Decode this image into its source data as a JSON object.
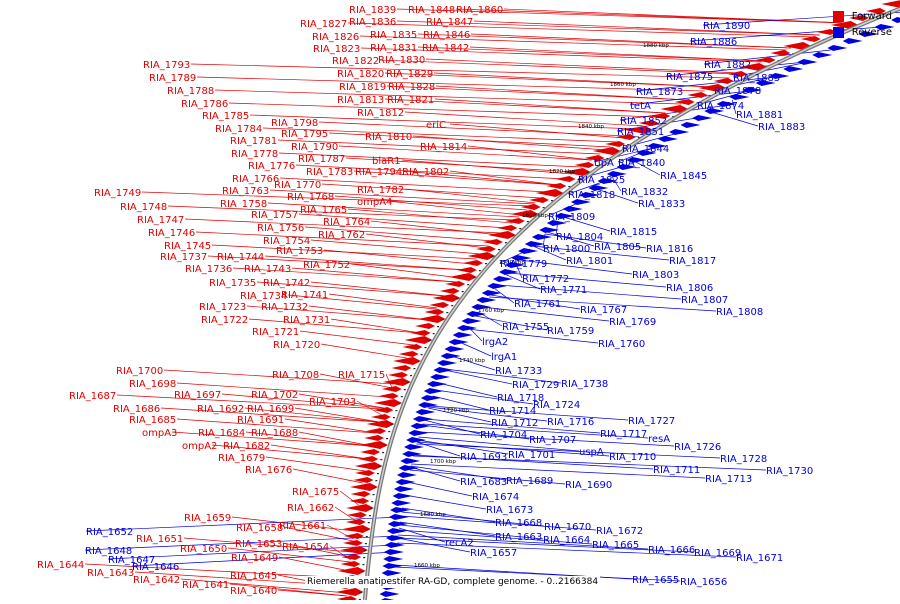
{
  "legend": {
    "forward_label": "Forward",
    "reverse_label": "Reverse",
    "forward_color": "#e00000",
    "reverse_color": "#0000e0"
  },
  "caption": "Riemerella anatipestifer RA-GD, complete genome. - 0..2166384",
  "scale_ticks": [
    "1880 kbp",
    "1860 kbp",
    "1840 kbp",
    "1820 kbp",
    "1800 kbp",
    "1780 kbp",
    "1760 kbp",
    "1740 kbp",
    "1720 kbp",
    "1700 kbp",
    "1680 kbp",
    "1660 kbp"
  ],
  "forward_labels": [
    "RIA_1839",
    "RIA_1848",
    "RIA_1860",
    "RIA_1827",
    "RIA_1836",
    "RIA_1847",
    "RIA_1826",
    "RIA_1835",
    "RIA_1846",
    "RIA_1823",
    "RIA_1831",
    "RIA_1842",
    "RIA_1822",
    "RIA_1830",
    "RIA_1820",
    "RIA_1829",
    "RIA_1819",
    "RIA_1828",
    "RIA_1813",
    "RIA_1821",
    "RIA_1812",
    "eriC",
    "RIA_1810",
    "RIA_1814",
    "RIA_1793",
    "RIA_1789",
    "RIA_1788",
    "RIA_1786",
    "RIA_1785",
    "RIA_1798",
    "RIA_1784",
    "RIA_1795",
    "RIA_1781",
    "RIA_1790",
    "RIA_1778",
    "RIA_1787",
    "blaR1",
    "RIA_1776",
    "RIA_1783",
    "RIA_1794",
    "RIA_1802",
    "RIA_1766",
    "RIA_1770",
    "RIA_1782",
    "RIA_1763",
    "RIA_1768",
    "ompA4",
    "RIA_1758",
    "RIA_1765",
    "RIA_1757",
    "RIA_1764",
    "RIA_1756",
    "RIA_1762",
    "RIA_1749",
    "RIA_1748",
    "RIA_1747",
    "RIA_1754",
    "RIA_1746",
    "RIA_1753",
    "RIA_1745",
    "RIA_1737",
    "RIA_1744",
    "RIA_1752",
    "RIA_1736",
    "RIA_1743",
    "RIA_1735",
    "RIA_1742",
    "RIA_1734",
    "RIA_1741",
    "RIA_1723",
    "RIA_1732",
    "RIA_1722",
    "RIA_1731",
    "RIA_1721",
    "RIA_1720",
    "RIA_1708",
    "RIA_1715",
    "RIA_1700",
    "RIA_1698",
    "RIA_1697",
    "RIA_1702",
    "RIA_1687",
    "RIA_1703",
    "RIA_1686",
    "RIA_1692",
    "RIA_1699",
    "RIA_1685",
    "RIA_1691",
    "ompA3",
    "RIA_1684",
    "RIA_1688",
    "ompA2",
    "RIA_1682",
    "RIA_1679",
    "RIA_1676",
    "RIA_1675",
    "RIA_1662",
    "RIA_1659",
    "RIA_1658",
    "RIA_1661",
    "RIA_1651",
    "RIA_1650",
    "RIA_1653",
    "RIA_1654",
    "RIA_1649",
    "RIA_1644",
    "RIA_1643",
    "RIA_1642",
    "RIA_1641",
    "RIA_1645",
    "RIA_1640"
  ],
  "reverse_labels": [
    "RIA_1890",
    "RIA_1886",
    "RIA_1882",
    "RIA_1875",
    "RIA_1885",
    "RIA_1873",
    "RIA_1878",
    "RIA_1874",
    "RIA_1881",
    "RIA_1883",
    "tetA",
    "RIA_1852",
    "RIA_1851",
    "RIA_1844",
    "tlpA",
    "RIA_1840",
    "RIA_1845",
    "RIA_1825",
    "RIA_1832",
    "RIA_1818",
    "RIA_1833",
    "RIA_1809",
    "RIA_1815",
    "RIA_1804",
    "RIA_1800",
    "RIA_1805",
    "RIA_1816",
    "RIA_1801",
    "RIA_1817",
    "RIA_1779",
    "RIA_1803",
    "RIA_1772",
    "RIA_1806",
    "RIA_1771",
    "RIA_1807",
    "RIA_1761",
    "RIA_1767",
    "RIA_1808",
    "RIA_1755",
    "RIA_1759",
    "RIA_1769",
    "RIA_1760",
    "lrgA2",
    "lrgA1",
    "RIA_1733",
    "RIA_1729",
    "RIA_1738",
    "RIA_1718",
    "RIA_1724",
    "RIA_1714",
    "RIA_1716",
    "RIA_1727",
    "RIA_1712",
    "RIA_1717",
    "resA",
    "RIA_1704",
    "RIA_1707",
    "RIA_1726",
    "uspA",
    "RIA_1701",
    "RIA_1710",
    "RIA_1728",
    "RIA_1693",
    "RIA_1711",
    "RIA_1730",
    "RIA_1713",
    "RIA_1683",
    "RIA_1689",
    "RIA_1690",
    "RIA_1674",
    "RIA_1673",
    "RIA_1668",
    "RIA_1670",
    "RIA_1672",
    "RIA_1663",
    "RIA_1664",
    "RIA_1665",
    "RIA_1666",
    "recA2",
    "RIA_1669",
    "RIA_1657",
    "RIA_1671",
    "RIA_1652",
    "RIA_1648",
    "RIA_1647",
    "RIA_1646",
    "RIA_1655",
    "RIA_1656"
  ]
}
